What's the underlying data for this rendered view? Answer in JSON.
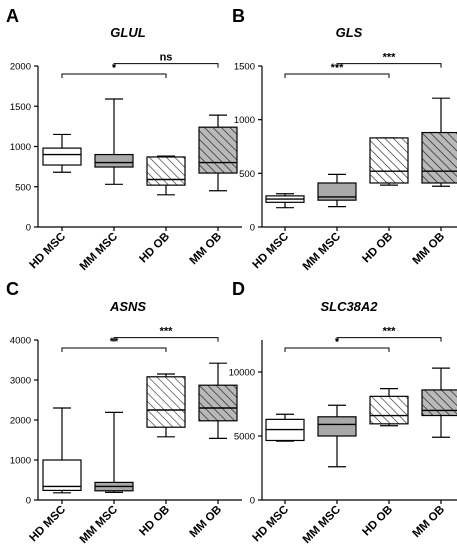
{
  "chart_data": [
    {
      "panel": "A",
      "type": "box",
      "title": "GLUL",
      "categories": [
        "HD MSC",
        "MM MSC",
        "HD OB",
        "MM OB"
      ],
      "ylim": [
        0,
        2000
      ],
      "yticks": [
        0,
        500,
        1000,
        1500,
        2000
      ],
      "boxes": [
        {
          "min": 680,
          "q1": 770,
          "median": 900,
          "q3": 980,
          "max": 1150
        },
        {
          "min": 530,
          "q1": 745,
          "median": 800,
          "q3": 900,
          "max": 1590
        },
        {
          "min": 400,
          "q1": 520,
          "median": 590,
          "q3": 870,
          "max": 880
        },
        {
          "min": 450,
          "q1": 670,
          "median": 800,
          "q3": 1240,
          "max": 1390
        }
      ],
      "significance": [
        {
          "from": "HD MSC",
          "to": "HD OB",
          "label": "*"
        },
        {
          "from": "MM MSC",
          "to": "MM OB",
          "label": "ns"
        }
      ]
    },
    {
      "panel": "B",
      "type": "box",
      "title": "GLS",
      "categories": [
        "HD MSC",
        "MM MSC",
        "HD OB",
        "MM OB"
      ],
      "ylim": [
        0,
        1500
      ],
      "yticks": [
        0,
        500,
        1000,
        1500
      ],
      "boxes": [
        {
          "min": 180,
          "q1": 230,
          "median": 260,
          "q3": 290,
          "max": 310
        },
        {
          "min": 190,
          "q1": 250,
          "median": 280,
          "q3": 410,
          "max": 490
        },
        {
          "min": 390,
          "q1": 410,
          "median": 520,
          "q3": 830,
          "max": 830
        },
        {
          "min": 380,
          "q1": 410,
          "median": 520,
          "q3": 880,
          "max": 1200
        }
      ],
      "significance": [
        {
          "from": "HD MSC",
          "to": "HD OB",
          "label": "***"
        },
        {
          "from": "MM MSC",
          "to": "MM OB",
          "label": "***"
        }
      ]
    },
    {
      "panel": "C",
      "type": "box",
      "title": "ASNS",
      "categories": [
        "HD MSC",
        "MM MSC",
        "HD OB",
        "MM OB"
      ],
      "ylim": [
        0,
        4000
      ],
      "yticks": [
        0,
        1000,
        2000,
        3000,
        4000
      ],
      "boxes": [
        {
          "min": 180,
          "q1": 240,
          "median": 340,
          "q3": 1000,
          "max": 2300
        },
        {
          "min": 190,
          "q1": 230,
          "median": 340,
          "q3": 440,
          "max": 2190
        },
        {
          "min": 1580,
          "q1": 1820,
          "median": 2250,
          "q3": 3080,
          "max": 3150
        },
        {
          "min": 1540,
          "q1": 1980,
          "median": 2300,
          "q3": 2870,
          "max": 3420
        }
      ],
      "significance": [
        {
          "from": "HD MSC",
          "to": "HD OB",
          "label": "**"
        },
        {
          "from": "MM MSC",
          "to": "MM OB",
          "label": "***"
        }
      ]
    },
    {
      "panel": "D",
      "type": "box",
      "title": "SLC38A2",
      "categories": [
        "HD MSC",
        "MM MSC",
        "HD OB",
        "MM OB"
      ],
      "ylim": [
        0,
        12500
      ],
      "yticks": [
        0,
        5000,
        10000
      ],
      "boxes": [
        {
          "min": 4600,
          "q1": 4650,
          "median": 5500,
          "q3": 6300,
          "max": 6700
        },
        {
          "min": 2600,
          "q1": 5000,
          "median": 5900,
          "q3": 6500,
          "max": 7400
        },
        {
          "min": 5800,
          "q1": 5950,
          "median": 6600,
          "q3": 8100,
          "max": 8700
        },
        {
          "min": 4900,
          "q1": 6600,
          "median": 7000,
          "q3": 8600,
          "max": 10300
        }
      ],
      "significance": [
        {
          "from": "HD MSC",
          "to": "HD OB",
          "label": "*"
        },
        {
          "from": "MM MSC",
          "to": "MM OB",
          "label": "***"
        }
      ]
    }
  ]
}
